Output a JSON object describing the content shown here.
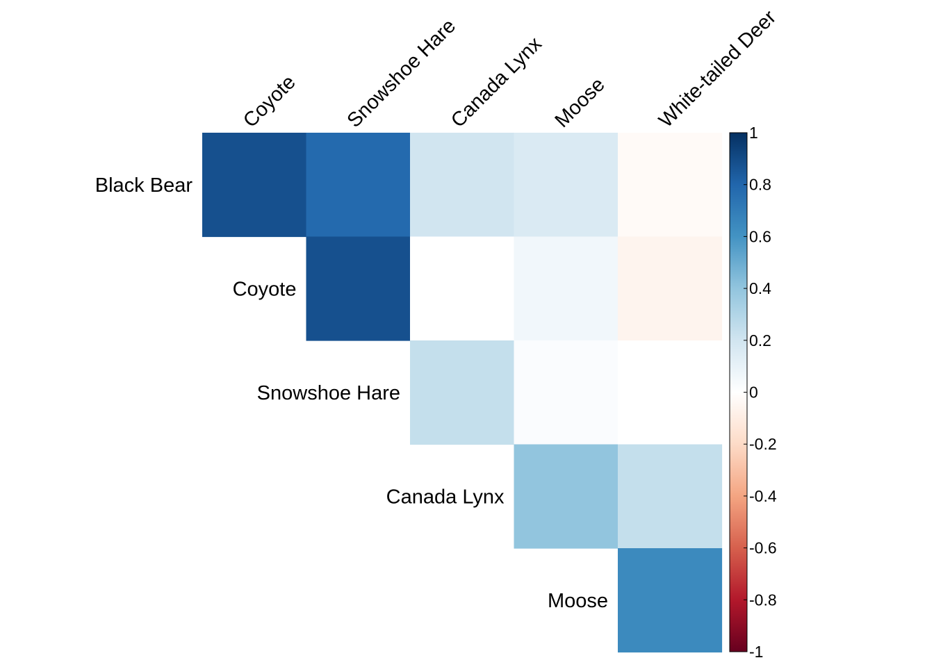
{
  "chart_data": {
    "type": "heatmap",
    "subtype": "correlation-upper-triangle",
    "title": "",
    "row_labels": [
      "Black Bear",
      "Coyote",
      "Snowshoe Hare",
      "Canada Lynx",
      "Moose"
    ],
    "col_labels": [
      "Coyote",
      "Snowshoe Hare",
      "Canada Lynx",
      "Moose",
      "White-tailed Deer"
    ],
    "values": [
      [
        0.88,
        0.78,
        0.2,
        0.16,
        -0.03
      ],
      [
        null,
        0.88,
        0.0,
        0.06,
        -0.06
      ],
      [
        null,
        null,
        0.24,
        0.02,
        0.0
      ],
      [
        null,
        null,
        null,
        0.4,
        0.24
      ],
      [
        null,
        null,
        null,
        null,
        0.64
      ]
    ],
    "colorbar": {
      "min": -1,
      "max": 1,
      "ticks": [
        "1",
        "0.8",
        "0.6",
        "0.4",
        "0.2",
        "0",
        "-0.2",
        "-0.4",
        "-0.6",
        "-0.8",
        "-1"
      ],
      "palette": [
        "#67001F",
        "#B2182B",
        "#D6604D",
        "#F4A582",
        "#FDDBC7",
        "#FFFFFF",
        "#D1E5F0",
        "#92C5DE",
        "#4393C3",
        "#2166AC",
        "#053061"
      ]
    },
    "grid": false,
    "legend_position": "right"
  }
}
